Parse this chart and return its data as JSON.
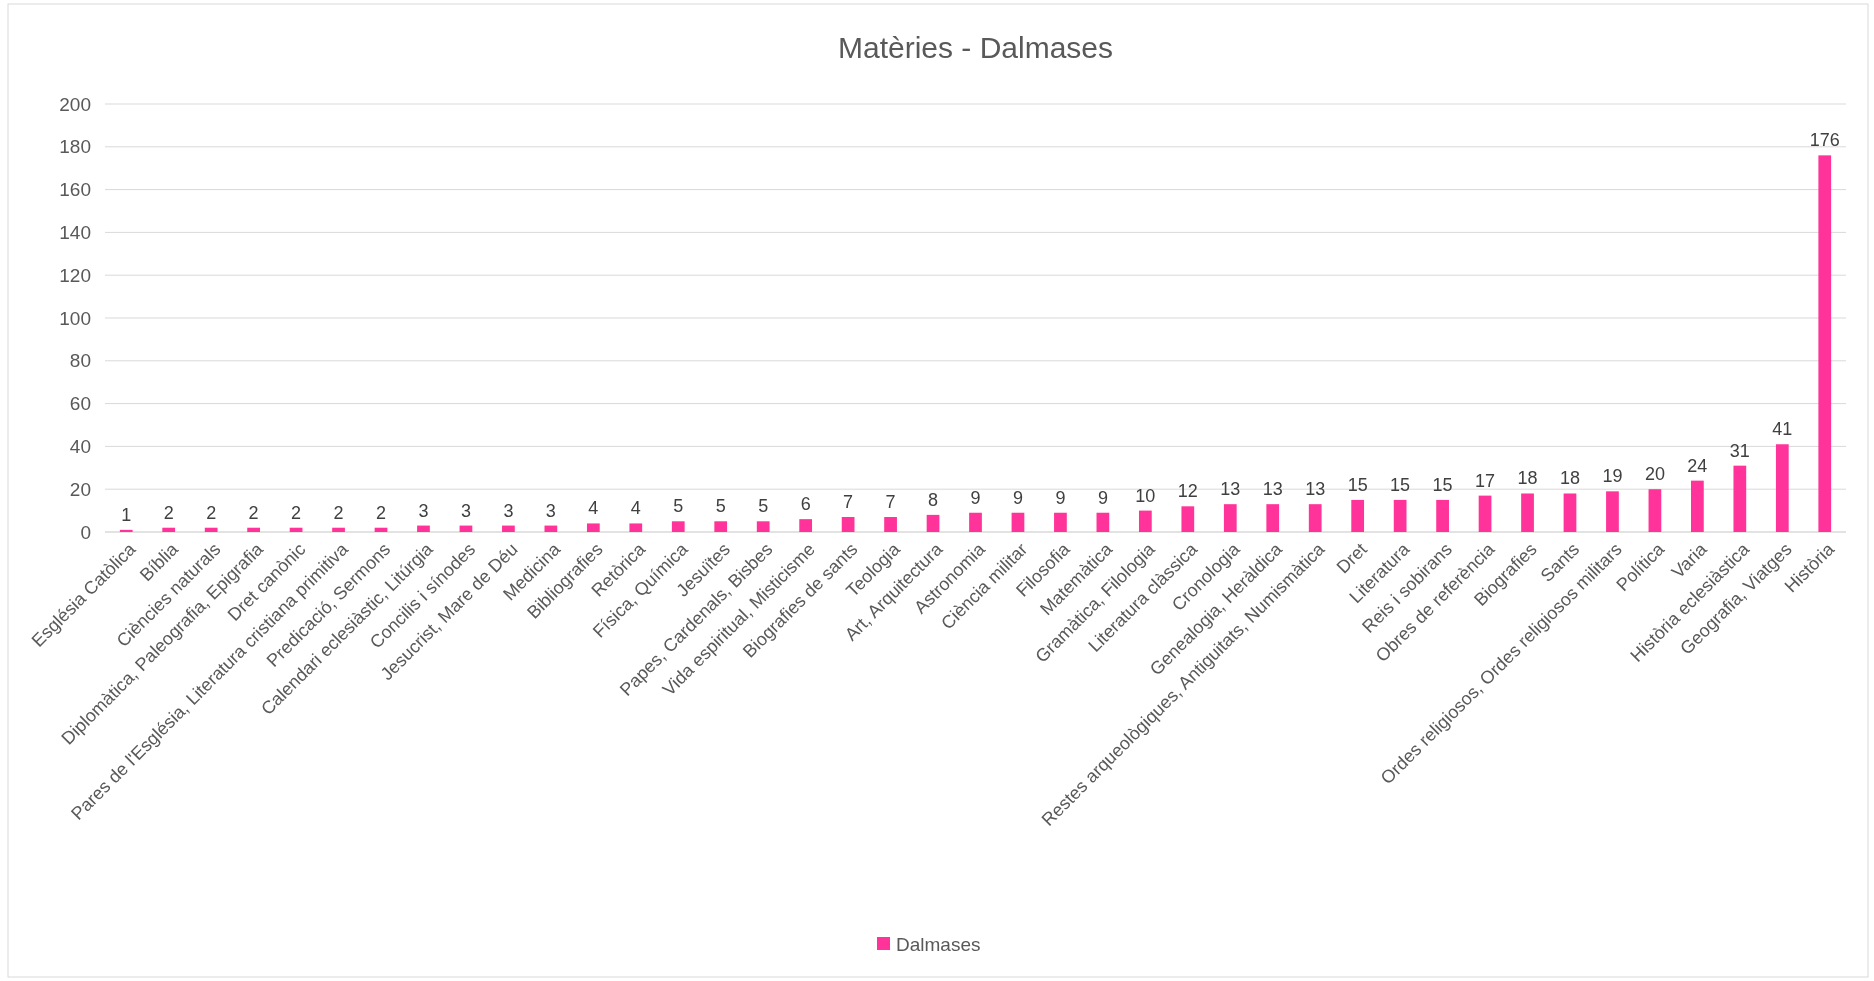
{
  "chart_data": {
    "type": "bar",
    "title": "Matèries - Dalmases",
    "categories": [
      "Església Catòlica",
      "Bíblia",
      "Ciències naturals",
      "Diplomàtica, Paleografia, Epigrafia",
      "Dret canònic",
      "Pares de l'Església, Literatura cristiana primitiva",
      "Predicació, Sermons",
      "Calendari eclesiàstic, Litúrgia",
      "Concilis i sínodes",
      "Jesucrist, Mare de Déu",
      "Medicina",
      "Bibliografies",
      "Retòrica",
      "Física, Química",
      "Jesuïtes",
      "Papes, Cardenals, Bisbes",
      "Vida espiritual, Misticisme",
      "Biografies de sants",
      "Teologia",
      "Art, Arquitectura",
      "Astronomia",
      "Ciència militar",
      "Filosofia",
      "Matemàtica",
      "Gramàtica, Filologia",
      "Literatura clàssica",
      "Cronologia",
      "Genealogia, Heràldica",
      "Restes arqueològiques, Antiguitats, Numismàtica",
      "Dret",
      "Literatura",
      "Reis i sobirans",
      "Obres de referència",
      "Biografies",
      "Sants",
      "Ordes religiosos, Ordes religiosos militars",
      "Política",
      "Varia",
      "Història eclesiàstica",
      "Geografia, Viatges",
      "Història"
    ],
    "series": [
      {
        "name": "Dalmases",
        "color": "#ff3399",
        "values": [
          1,
          2,
          2,
          2,
          2,
          2,
          2,
          3,
          3,
          3,
          3,
          4,
          4,
          5,
          5,
          5,
          6,
          7,
          7,
          8,
          9,
          9,
          9,
          9,
          10,
          12,
          13,
          13,
          13,
          15,
          15,
          15,
          17,
          18,
          18,
          19,
          20,
          24,
          31,
          41,
          176
        ]
      }
    ],
    "ylim": [
      0,
      200
    ],
    "yticks": [
      0,
      20,
      40,
      60,
      80,
      100,
      120,
      140,
      160,
      180,
      200
    ],
    "grid": "y",
    "data_labels": true,
    "legend": "bottom"
  }
}
